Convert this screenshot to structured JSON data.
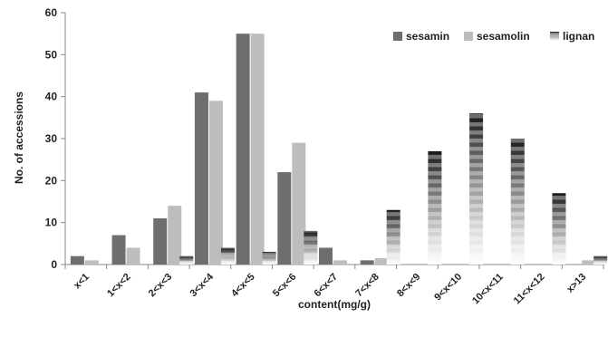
{
  "chart_data": {
    "type": "bar",
    "xlabel": "content(mg/g)",
    "ylabel": "No. of accessions",
    "ylim": [
      0,
      60
    ],
    "yticks": [
      0,
      10,
      20,
      30,
      40,
      50,
      60
    ],
    "grid": false,
    "legend_position": "top-right",
    "categories": [
      "x<1",
      "1<x<2",
      "2<x<3",
      "3<x<4",
      "4<x<5",
      "5<x<6",
      "6<x<7",
      "7<x<8",
      "8<x<9",
      "9<x<10",
      "10<x<11",
      "11<x<12",
      "x>13"
    ],
    "series": [
      {
        "name": "sesamin",
        "color": "#6e6e6e",
        "pattern": "solid",
        "values": [
          2,
          7,
          11,
          41,
          55,
          22,
          4,
          1,
          0,
          0,
          0,
          0,
          0
        ]
      },
      {
        "name": "sesamolin",
        "color": "#bdbdbd",
        "pattern": "solid",
        "values": [
          1,
          4,
          14,
          39,
          55,
          29,
          1,
          1.5,
          0,
          0,
          0,
          0,
          1
        ]
      },
      {
        "name": "lignan",
        "color": "#000000",
        "pattern": "striped",
        "values": [
          0,
          0,
          2,
          4,
          3,
          8,
          0,
          13,
          27,
          36,
          30,
          17,
          2
        ]
      }
    ]
  }
}
